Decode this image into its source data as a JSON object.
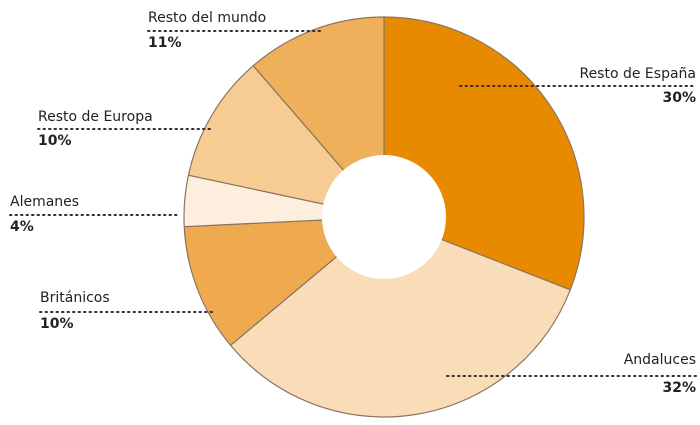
{
  "chart_data": {
    "type": "pie",
    "donut": true,
    "categories": [
      "Resto de España",
      "Andaluces",
      "Británicos",
      "Alemanes",
      "Resto de Europa",
      "Resto del mundo"
    ],
    "values": [
      30,
      32,
      10,
      4,
      10,
      11
    ],
    "value_labels": [
      "30%",
      "32%",
      "10%",
      "4%",
      "10%",
      "11%"
    ],
    "colors": [
      "#e88a00",
      "#f9dcb8",
      "#efaa50",
      "#fdeedd",
      "#f7cc92",
      "#efb05c"
    ]
  }
}
